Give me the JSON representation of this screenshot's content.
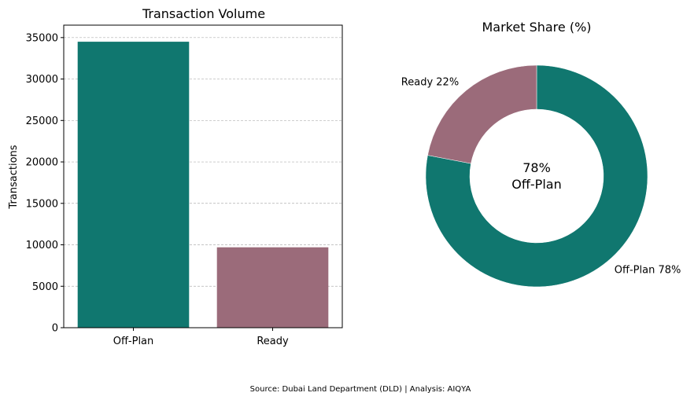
{
  "chart_data": [
    {
      "type": "bar",
      "title": "Transaction Volume",
      "xlabel": "",
      "ylabel": "Transactions",
      "categories": [
        "Off-Plan",
        "Ready"
      ],
      "values": [
        34500,
        9700
      ],
      "colors": [
        "#10776f",
        "#9b6b7a"
      ],
      "ylim": [
        0,
        36500
      ],
      "yticks": [
        0,
        5000,
        10000,
        15000,
        20000,
        25000,
        30000,
        35000
      ],
      "grid": "horizontal dashed"
    },
    {
      "type": "pie",
      "style": "donut",
      "title": "Market Share (%)",
      "labels": [
        "Off-Plan 78%",
        "Ready 22%"
      ],
      "values": [
        78,
        22
      ],
      "colors": [
        "#10776f",
        "#9b6b7a"
      ],
      "center_text": [
        "78%",
        "Off-Plan"
      ]
    }
  ],
  "footer": {
    "source": "Source: Dubai Land Department (DLD) | Analysis: AIQYA"
  }
}
